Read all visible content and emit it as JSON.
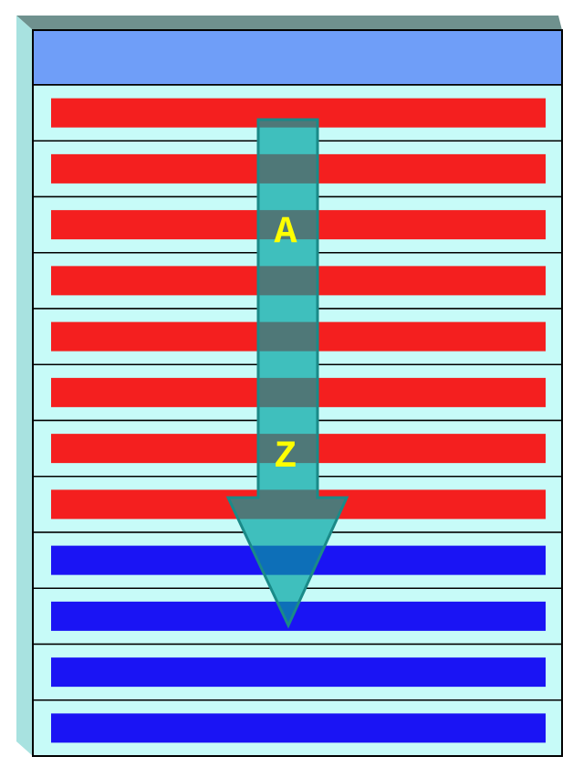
{
  "diagram": {
    "sort_letters": {
      "start": "A",
      "end": "Z"
    },
    "rows": [
      {
        "bar_color": "red"
      },
      {
        "bar_color": "red"
      },
      {
        "bar_color": "red"
      },
      {
        "bar_color": "red"
      },
      {
        "bar_color": "red"
      },
      {
        "bar_color": "red"
      },
      {
        "bar_color": "red"
      },
      {
        "bar_color": "red"
      },
      {
        "bar_color": "blue"
      },
      {
        "bar_color": "blue"
      },
      {
        "bar_color": "blue"
      },
      {
        "bar_color": "blue"
      }
    ],
    "colors": {
      "header": "#6f9ef8",
      "row_background": "#c7fbf8",
      "side_panel": "#a8e2e0",
      "top_panel": "#6f918e",
      "red_bar": "#f41f1f",
      "blue_bar": "#1a14f4",
      "arrow_light": "#3fbfbd",
      "arrow_dark": "#4f7878",
      "arrow_outline": "#1a8a88",
      "letter": "#ffff00"
    }
  }
}
